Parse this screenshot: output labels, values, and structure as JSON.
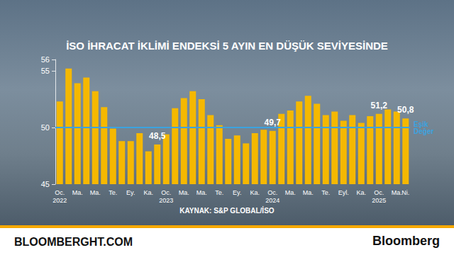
{
  "chart_data": {
    "type": "bar",
    "title": "İSO İHRACAT İKLİMİ ENDEKSİ 5 AYIN EN DÜŞÜK SEVİYESİNDE",
    "source": "KAYNAK: S&P GLOBAL/İSO",
    "footer": {
      "left": "BLOOMBERGHT.COM",
      "right": "Bloomberg"
    },
    "categories": [
      "Oc.\n2022",
      null,
      "Ma.",
      null,
      "Ma.",
      null,
      "Te.",
      null,
      "Ey.",
      null,
      "Ka.",
      null,
      "Oc.\n2023",
      null,
      "Ma.",
      null,
      "Ma.",
      null,
      "Te.",
      null,
      "Ey.",
      null,
      "Ka.",
      null,
      "Oc.\n2024",
      null,
      "Ma.",
      null,
      "Ma.",
      null,
      "Te.",
      null,
      "Eyl.",
      null,
      "Ka.",
      null,
      "Oc.\n2025",
      null,
      "Ma.",
      "Ni."
    ],
    "values": [
      52.3,
      55.2,
      53.9,
      54.4,
      53.2,
      51.8,
      49.9,
      48.8,
      48.8,
      49.5,
      47.9,
      48.5,
      49.4,
      51.7,
      52.6,
      53.2,
      52.5,
      51.1,
      50.2,
      49.0,
      49.3,
      48.6,
      49.5,
      49.8,
      49.7,
      51.2,
      51.5,
      52.3,
      52.8,
      52.1,
      51.1,
      51.4,
      50.6,
      51.1,
      50.4,
      51.0,
      51.2,
      51.6,
      51.4,
      50.8
    ],
    "value_labels": [
      null,
      null,
      null,
      null,
      null,
      null,
      null,
      null,
      null,
      null,
      null,
      "48,5",
      null,
      null,
      null,
      null,
      null,
      null,
      null,
      null,
      null,
      null,
      null,
      null,
      "49,7",
      null,
      null,
      null,
      null,
      null,
      null,
      null,
      null,
      null,
      null,
      null,
      "51,2",
      null,
      null,
      "50,8"
    ],
    "color": "#f5b800",
    "threshold": {
      "value": 50,
      "label": "Eşik Değer",
      "color": "#3ba3e0"
    },
    "ylim": [
      45,
      56
    ],
    "yticks": [
      45,
      50,
      55
    ],
    "grid": false
  }
}
